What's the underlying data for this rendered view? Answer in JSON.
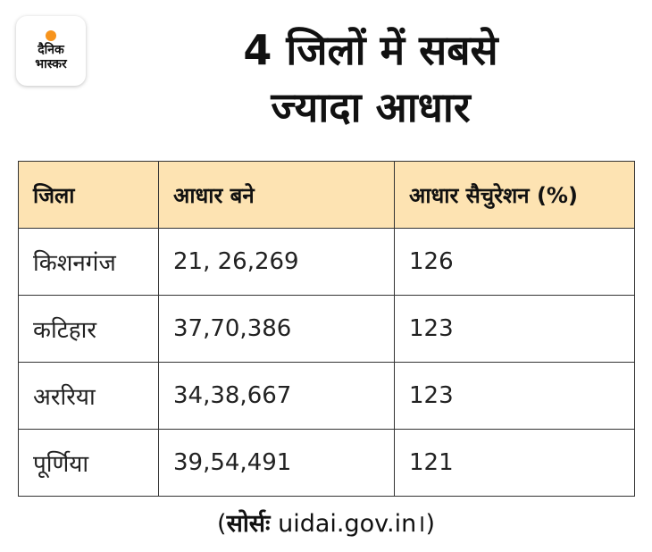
{
  "logo": {
    "line1": "दैनिक",
    "line2": "भास्कर",
    "accent_color": "#f7941d"
  },
  "title": {
    "line1": "4 जिलों में सबसे",
    "line2": "ज्यादा आधार"
  },
  "table": {
    "header_bg": "#fde3b2",
    "columns": [
      "जिला",
      "आधार बने",
      "आधार सैचुरेशन (%)"
    ],
    "rows": [
      [
        "किशनगंज",
        "21, 26,269",
        "126"
      ],
      [
        "कटिहार",
        "37,70,386",
        "123"
      ],
      [
        "अररिया",
        "34,38,667",
        "123"
      ],
      [
        "पूर्णिया",
        "39,54,491",
        "121"
      ]
    ]
  },
  "source": {
    "open": "(",
    "label": "सोर्सः",
    "text": " uidai.gov.in।)"
  }
}
